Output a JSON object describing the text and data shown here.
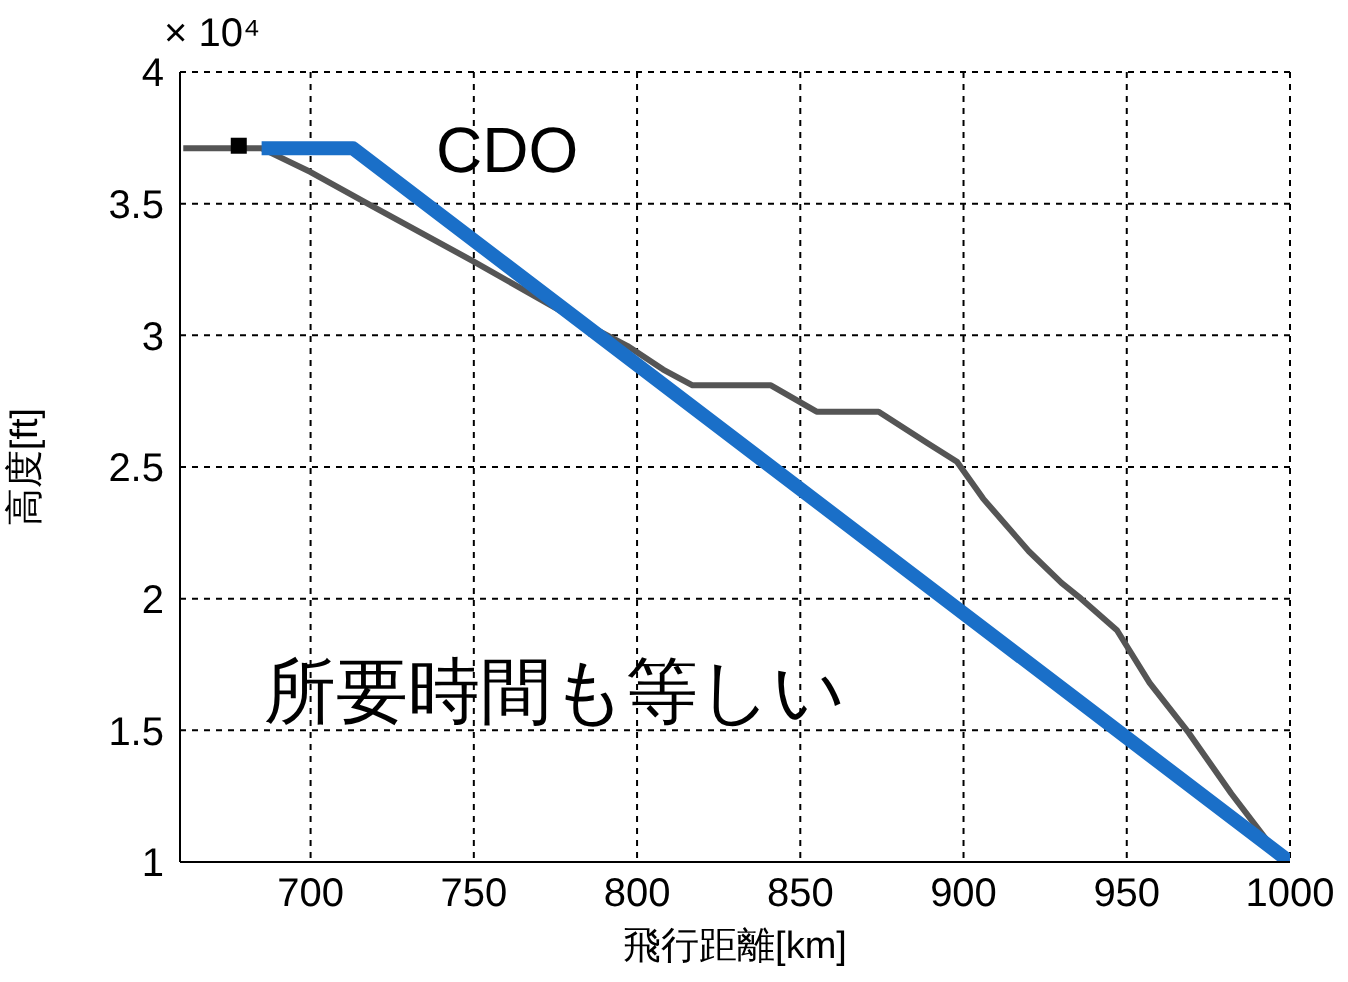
{
  "chart_data": {
    "type": "line",
    "xlabel": "飛行距離[km]",
    "ylabel": "高度[ft]",
    "annotations": [
      "× 10⁴",
      "CDO",
      "所要時間も等しい"
    ],
    "xlim": [
      660,
      1000
    ],
    "xticks": [
      700,
      750,
      800,
      850,
      900,
      950,
      1000
    ],
    "ylim": [
      1,
      4
    ],
    "yticks": [
      1,
      1.5,
      2,
      2.5,
      3,
      3.5,
      4
    ],
    "grid": true,
    "line_style": "solid",
    "marker": "none",
    "series": [
      {
        "color": "#555555",
        "x": [
          661,
          685,
          700,
          719,
          750,
          777,
          797,
          808,
          817,
          841,
          855,
          874,
          889,
          898,
          906,
          920,
          930,
          936,
          947,
          957,
          969,
          982,
          998
        ],
        "values": [
          3.71,
          3.71,
          3.62,
          3.49,
          3.28,
          3.09,
          2.96,
          2.87,
          2.81,
          2.81,
          2.71,
          2.71,
          2.59,
          2.52,
          2.38,
          2.18,
          2.06,
          2.0,
          1.88,
          1.68,
          1.49,
          1.26,
          1.0
        ]
      },
      {
        "color": "#000000",
        "type": "scatter",
        "marker": "square",
        "x": [
          678
        ],
        "values": [
          3.72
        ]
      },
      {
        "color": "#1a6fc8",
        "x": [
          685,
          713,
          1000
        ],
        "values": [
          3.71,
          3.71,
          1.0
        ]
      }
    ]
  }
}
